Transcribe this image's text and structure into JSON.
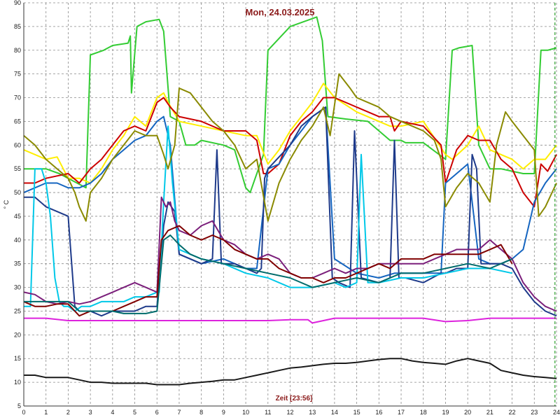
{
  "chart_data": {
    "type": "line",
    "title": "Mon, 24.03.2025",
    "xlabel": "Zeit [23:56]",
    "ylabel": "° C",
    "xlim": [
      0,
      24
    ],
    "ylim": [
      5,
      90
    ],
    "x_ticks": [
      "0",
      "1",
      "2",
      "3",
      "4",
      "5",
      "6",
      "7",
      "8",
      "9",
      "10",
      "11",
      "12",
      "13",
      "14",
      "15",
      "16",
      "17",
      "18",
      "19",
      "20",
      "21",
      "22",
      "23",
      "24"
    ],
    "y_ticks": [
      "5",
      "10",
      "15",
      "20",
      "25",
      "30",
      "35",
      "40",
      "45",
      "50",
      "55",
      "60",
      "65",
      "70",
      "75",
      "80",
      "85",
      "90"
    ],
    "grid": true,
    "grid_style": "dashed",
    "current_time_marker": 23.93,
    "colors": {
      "title": "#8b1a1a",
      "grid": "#8a8a8a",
      "marker": "#2ca02c"
    },
    "series": [
      {
        "color": "#33cc33",
        "x": [
          0,
          1,
          1.6,
          2.8,
          3,
          3.6,
          4,
          4.7,
          4.8,
          4.85,
          5.1,
          5.5,
          6.1,
          6.3,
          6.6,
          7,
          7.3,
          7.7,
          8,
          9,
          9.5,
          10,
          10.2,
          10.8,
          11,
          12,
          13.2,
          13.45,
          13.7,
          14.5,
          15.5,
          16.5,
          17,
          17.2,
          18,
          19,
          19.3,
          19.6,
          20.2,
          20.5,
          21,
          21.5,
          22.5,
          23,
          23.3,
          23.6,
          24
        ],
        "y": [
          55,
          55,
          54,
          51,
          79,
          80,
          81,
          81.5,
          83,
          71,
          85,
          86,
          86.5,
          84,
          66,
          65,
          60,
          60,
          61,
          60,
          59,
          51,
          50,
          58,
          80,
          85,
          87,
          82,
          66,
          65.5,
          65,
          61,
          61,
          60.5,
          60.5,
          57,
          80,
          80.5,
          81,
          60,
          55,
          55,
          54,
          54,
          80,
          80,
          80.5
        ]
      },
      {
        "color": "#ffee00",
        "x": [
          0,
          0.5,
          1,
          1.5,
          2,
          2.5,
          3,
          3.5,
          4,
          4.5,
          5,
          5.5,
          6,
          6.3,
          6.5,
          7,
          8,
          9,
          10,
          10.5,
          11,
          11.5,
          12,
          12.5,
          13,
          13.5,
          14,
          15,
          16,
          16.5,
          17,
          18,
          19,
          19.3,
          20,
          20.5,
          21,
          21.5,
          22,
          22.5,
          23,
          23.5,
          24
        ],
        "y": [
          59,
          58,
          57,
          57.5,
          53,
          53,
          52,
          55,
          59,
          62,
          66,
          64,
          70,
          71,
          69,
          65,
          64,
          63,
          62,
          62,
          56,
          59,
          63,
          66,
          69,
          73,
          70,
          67,
          65,
          64,
          64,
          65,
          58,
          57,
          60,
          64,
          59,
          58,
          57,
          55,
          57,
          57,
          60
        ]
      },
      {
        "color": "#cc0000",
        "x": [
          0,
          0.5,
          1,
          1.5,
          2,
          2.5,
          3,
          3.5,
          4,
          4.5,
          5,
          5.5,
          6,
          6.3,
          6.6,
          7,
          8,
          9,
          10,
          10.5,
          10.8,
          11,
          11.5,
          12,
          12.5,
          13,
          13.5,
          14,
          15,
          16,
          16.5,
          16.7,
          17,
          18,
          18.8,
          19,
          19.5,
          20,
          20.5,
          21,
          21.5,
          22,
          22.5,
          23,
          23.3,
          23.6,
          24
        ],
        "y": [
          52,
          52,
          53,
          53.5,
          54,
          52,
          55,
          57,
          60,
          63,
          64,
          63,
          69,
          70,
          68,
          66,
          65,
          63,
          63,
          61,
          54,
          54,
          56,
          62,
          65,
          67,
          70,
          70,
          68,
          66,
          66,
          63,
          65,
          64,
          60,
          52,
          59,
          62,
          61,
          61,
          57,
          55,
          50,
          47,
          56,
          54.5,
          58
        ]
      },
      {
        "color": "#1565c0",
        "x": [
          0,
          0.5,
          1,
          1.5,
          2,
          2.5,
          3,
          3.5,
          4,
          4.5,
          5,
          5.5,
          6,
          6.3,
          6.6,
          7,
          8,
          9,
          10,
          10.5,
          11,
          11.5,
          12,
          12.5,
          13,
          13.3,
          13.6,
          14,
          15,
          16,
          16.7,
          17,
          18,
          18.8,
          19,
          19.5,
          20,
          20.5,
          21,
          21.5,
          22,
          22.5,
          23,
          23.5,
          24
        ],
        "y": [
          50,
          51,
          52,
          52,
          51,
          51,
          52,
          54,
          57,
          59,
          61,
          62,
          65,
          66,
          60,
          37,
          35,
          36,
          34,
          34,
          55,
          56,
          60,
          63,
          66,
          67,
          68,
          36,
          33,
          32,
          33,
          33,
          33,
          33,
          52,
          54,
          56,
          36,
          35,
          35,
          36,
          38,
          48,
          52,
          55
        ]
      },
      {
        "color": "#1e3a8a",
        "x": [
          0,
          0.5,
          1,
          1.5,
          2,
          2.3,
          2.5,
          3,
          3.5,
          4,
          4.5,
          5,
          5.5,
          6,
          6.3,
          6.5,
          6.8,
          7,
          8,
          8.5,
          8.7,
          8.9,
          9.5,
          10,
          10.5,
          10.7,
          10.85,
          11,
          12,
          12.5,
          13,
          13.3,
          13.6,
          13.9,
          14.2,
          14.7,
          14.9,
          15.2,
          16,
          16.5,
          16.7,
          16.9,
          17.2,
          18,
          18.8,
          19,
          19.5,
          20,
          20.2,
          20.4,
          20.6,
          21,
          21.5,
          22,
          22.5,
          23,
          23.5,
          24
        ],
        "y": [
          49,
          49,
          47,
          46,
          45,
          26,
          25,
          25,
          24,
          25,
          25,
          25,
          26,
          26,
          43,
          48,
          46,
          37,
          35,
          36,
          59,
          35,
          35,
          34,
          33,
          34,
          53,
          55,
          60,
          64,
          66,
          67,
          68,
          32,
          31,
          30,
          63,
          32,
          31,
          32,
          61,
          32,
          32,
          31,
          33,
          33,
          34,
          34,
          58,
          55,
          35,
          35,
          35,
          34,
          30,
          27,
          25,
          24
        ]
      },
      {
        "color": "#00c8e8",
        "x": [
          0,
          0.3,
          0.5,
          0.8,
          1,
          1.2,
          1.4,
          1.6,
          1.8,
          2,
          2.3,
          2.6,
          3,
          3.5,
          4,
          4.5,
          5,
          5.5,
          6,
          6.1,
          6.3,
          6.5,
          6.7,
          7,
          8,
          9,
          10,
          11,
          12,
          13,
          14,
          14.5,
          15,
          15.2,
          15.5,
          16,
          17,
          18,
          19,
          20,
          21,
          22
        ],
        "y": [
          26,
          26,
          55,
          55,
          52,
          45,
          32,
          27,
          26,
          26,
          25,
          26,
          26,
          27,
          27,
          27,
          28,
          28,
          29,
          29,
          48,
          64,
          52,
          38,
          36,
          35,
          33,
          32,
          30,
          30,
          31,
          30,
          31,
          58,
          31,
          31,
          32,
          32,
          33,
          34,
          34,
          33
        ]
      },
      {
        "color": "#7b1f7b",
        "x": [
          0,
          0.5,
          1,
          1.5,
          2,
          2.5,
          3,
          3.5,
          4,
          4.5,
          5,
          5.5,
          6,
          6.2,
          6.4,
          6.6,
          6.8,
          7,
          7.5,
          8,
          8.5,
          9,
          9.5,
          10,
          10.5,
          11,
          11.5,
          12,
          12.5,
          13,
          13.5,
          14,
          14.5,
          15,
          15.5,
          16,
          16.5,
          17,
          17.5,
          18,
          18.5,
          19,
          19.5,
          20,
          20.5,
          21,
          21.5,
          22,
          22.5,
          23,
          23.5,
          24
        ],
        "y": [
          29,
          28.5,
          27,
          26.5,
          27,
          26.5,
          27,
          28,
          29,
          30,
          31,
          30,
          29,
          49,
          47,
          48,
          44,
          42,
          41,
          43,
          44,
          40,
          39,
          37,
          36,
          37,
          36,
          33,
          32,
          32,
          33,
          34,
          33,
          34,
          34,
          35,
          35,
          35,
          35,
          35,
          36,
          37,
          38,
          38,
          38,
          40,
          38,
          36,
          31,
          28,
          26,
          25
        ]
      },
      {
        "color": "#800000",
        "x": [
          0,
          0.5,
          1,
          1.5,
          2,
          2.5,
          3,
          3.5,
          4,
          4.5,
          5,
          5.5,
          6,
          6.2,
          6.5,
          7,
          7.5,
          8,
          8.5,
          9,
          9.5,
          10,
          10.5,
          11,
          11.5,
          12,
          12.5,
          13,
          13.5,
          14,
          14.5,
          15,
          15.5,
          16,
          16.5,
          17,
          17.5,
          18,
          18.5,
          19,
          19.5,
          20,
          20.5,
          21,
          21.5,
          22
        ],
        "y": [
          27,
          26,
          26,
          26.5,
          26.5,
          24,
          25,
          25,
          25,
          26,
          27,
          28,
          28,
          40,
          42,
          43,
          41,
          40,
          41,
          40,
          38,
          37,
          36,
          36,
          34,
          33,
          32,
          32,
          31,
          32,
          32,
          33,
          34,
          35,
          34,
          36,
          36,
          36,
          37,
          37,
          37,
          37,
          37,
          38,
          39,
          35
        ]
      },
      {
        "color": "#006b6b",
        "x": [
          0,
          0.5,
          1,
          1.5,
          2,
          2.5,
          3,
          3.5,
          4,
          4.5,
          5,
          5.5,
          6,
          6.3,
          6.6,
          7,
          7.5,
          8,
          9,
          10,
          11,
          12,
          13,
          14,
          15,
          16,
          17,
          18,
          19,
          20,
          21,
          22
        ],
        "y": [
          27,
          27,
          27,
          27,
          27,
          25,
          25,
          25,
          25,
          24.5,
          24.5,
          24.5,
          25,
          40,
          41,
          39,
          37,
          36,
          35,
          34,
          33,
          32,
          30,
          31,
          32,
          31,
          33,
          33,
          34,
          35,
          34,
          36
        ]
      },
      {
        "color": "#8a8a00",
        "x": [
          0,
          0.5,
          1,
          1.5,
          2,
          2.3,
          2.5,
          2.8,
          3,
          3.5,
          4,
          4.5,
          5,
          5.5,
          6,
          6.3,
          6.5,
          6.8,
          7,
          7.5,
          8,
          8.5,
          9,
          9.5,
          10,
          10.5,
          11,
          11.5,
          12,
          12.5,
          13,
          13.5,
          13.8,
          14.2,
          14.7,
          15,
          15.5,
          16,
          16.5,
          17,
          17.5,
          18,
          18.5,
          18.8,
          19,
          19.5,
          20,
          20.5,
          21,
          21.3,
          21.7,
          22,
          22.5,
          23,
          23.2,
          23.5,
          24
        ],
        "y": [
          62,
          60,
          57,
          55,
          53,
          50,
          47,
          44,
          50,
          53,
          57,
          60,
          63,
          62,
          62,
          58,
          55,
          60,
          72,
          71,
          68,
          65,
          63,
          60,
          55,
          57,
          44,
          52,
          57,
          61,
          64,
          68,
          62,
          75,
          72,
          70,
          69,
          68,
          66,
          65,
          64,
          63,
          61,
          57,
          47,
          51,
          54,
          52,
          48,
          60,
          67,
          65,
          62,
          59,
          45,
          47,
          52
        ]
      },
      {
        "color": "#dd22dd",
        "x": [
          0,
          1,
          2,
          3,
          4,
          5,
          6,
          7,
          8,
          9,
          10,
          11,
          12,
          12.8,
          13,
          14,
          15,
          16,
          17,
          18,
          19,
          20,
          21,
          22,
          23,
          24
        ],
        "y": [
          23.5,
          23.5,
          23,
          23,
          23,
          23,
          23,
          23,
          23,
          23,
          23,
          23,
          23.2,
          23.2,
          22.5,
          23.5,
          23.5,
          23.5,
          23.5,
          23.5,
          22.8,
          23,
          23.5,
          23.5,
          23.5,
          23.5
        ]
      },
      {
        "color": "#1a1a1a",
        "x": [
          0,
          0.5,
          1,
          1.5,
          2,
          2.5,
          3,
          3.5,
          4,
          4.5,
          5,
          5.5,
          6,
          6.5,
          7,
          7.5,
          8,
          8.5,
          9,
          9.5,
          10,
          10.5,
          11,
          11.5,
          12,
          12.5,
          13,
          13.5,
          14,
          14.5,
          15,
          15.5,
          16,
          16.5,
          17,
          17.5,
          18,
          18.5,
          19,
          19.5,
          20,
          20.5,
          21,
          21.5,
          22,
          22.5,
          23,
          23.5,
          24
        ],
        "y": [
          11.5,
          11.5,
          11,
          11,
          11,
          10.5,
          10,
          10,
          9.8,
          9.8,
          9.8,
          9.8,
          9.5,
          9.5,
          9.5,
          9.8,
          10,
          10.2,
          10.5,
          10.5,
          11,
          11.5,
          12,
          12.5,
          13,
          13.2,
          13.5,
          13.8,
          14,
          14,
          14.2,
          14.5,
          14.8,
          15,
          15,
          14.5,
          14.2,
          14,
          13.8,
          14.5,
          15,
          14.5,
          14,
          12.5,
          12,
          11.5,
          11.2,
          11,
          10.8
        ]
      }
    ]
  }
}
